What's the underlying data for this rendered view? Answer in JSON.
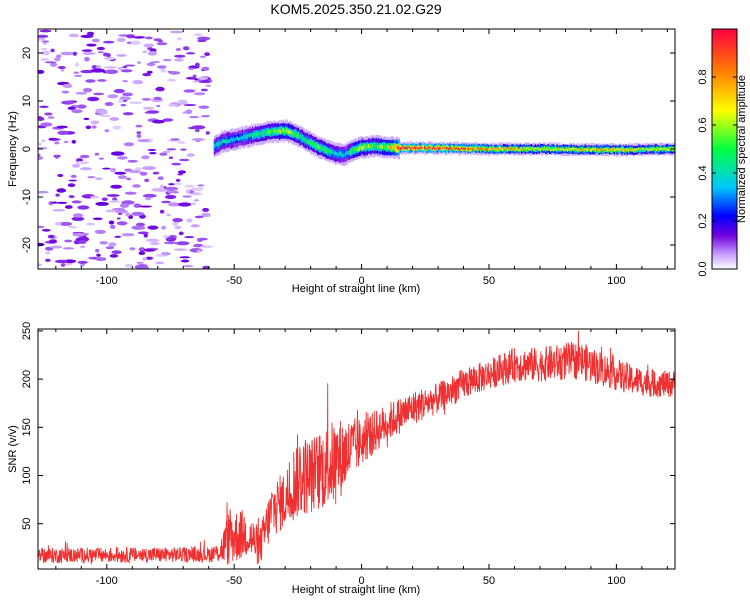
{
  "chart_data": [
    {
      "type": "heatmap",
      "title": "KOM5.2025.350.21.02.G29",
      "xlabel": "Height of straight line (km)",
      "ylabel": "Frequency (Hz)",
      "xlim": [
        -127,
        123
      ],
      "ylim": [
        -25,
        25
      ],
      "xticks": [
        -100,
        -50,
        0,
        50,
        100
      ],
      "yticks": [
        -20,
        -10,
        0,
        10,
        20
      ],
      "colorbar": {
        "label": "Normalized spectral amplitude",
        "range": [
          0,
          1
        ],
        "ticks": [
          0.0,
          0.2,
          0.4,
          0.6,
          0.8
        ],
        "colors": [
          "#ffffff",
          "#c8a0ff",
          "#6000e0",
          "#0000ff",
          "#00c8ff",
          "#00ff40",
          "#ffff00",
          "#ff8000",
          "#ff0040"
        ]
      },
      "ridge": [
        {
          "x": -58,
          "f": 0.5,
          "a": 0.35
        },
        {
          "x": -55,
          "f": 1.5,
          "a": 0.4
        },
        {
          "x": -50,
          "f": 2.0,
          "a": 0.35
        },
        {
          "x": -45,
          "f": 2.6,
          "a": 0.4
        },
        {
          "x": -40,
          "f": 3.2,
          "a": 0.45
        },
        {
          "x": -35,
          "f": 3.6,
          "a": 0.55
        },
        {
          "x": -30,
          "f": 3.8,
          "a": 0.6
        },
        {
          "x": -26,
          "f": 3.0,
          "a": 0.5
        },
        {
          "x": -22,
          "f": 1.8,
          "a": 0.45
        },
        {
          "x": -18,
          "f": 0.6,
          "a": 0.5
        },
        {
          "x": -14,
          "f": -0.3,
          "a": 0.5
        },
        {
          "x": -10,
          "f": -1.0,
          "a": 0.4
        },
        {
          "x": -7,
          "f": -1.2,
          "a": 0.35
        },
        {
          "x": -4,
          "f": -0.4,
          "a": 0.5
        },
        {
          "x": 0,
          "f": 0.4,
          "a": 0.6
        },
        {
          "x": 5,
          "f": 0.6,
          "a": 0.5
        },
        {
          "x": 10,
          "f": 0.4,
          "a": 0.6
        },
        {
          "x": 15,
          "f": 0.2,
          "a": 0.95
        },
        {
          "x": 25,
          "f": 0.2,
          "a": 0.9
        },
        {
          "x": 40,
          "f": 0.1,
          "a": 0.85
        },
        {
          "x": 55,
          "f": 0.0,
          "a": 0.75
        },
        {
          "x": 70,
          "f": 0.0,
          "a": 0.65
        },
        {
          "x": 85,
          "f": -0.1,
          "a": 0.7
        },
        {
          "x": 100,
          "f": -0.2,
          "a": 0.75
        },
        {
          "x": 110,
          "f": -0.1,
          "a": 0.6
        },
        {
          "x": 123,
          "f": 0.0,
          "a": 0.7
        }
      ]
    },
    {
      "type": "line",
      "xlabel": "Height of straight line (km)",
      "ylabel": "SNR (v/v)",
      "xlim": [
        -127,
        123
      ],
      "ylim": [
        3,
        252
      ],
      "xticks": [
        -100,
        -50,
        0,
        50,
        100
      ],
      "yticks": [
        50,
        100,
        150,
        200,
        250
      ],
      "color": "#f03030",
      "envelope": [
        {
          "x": -127,
          "mean": 17,
          "spread": 8
        },
        {
          "x": -60,
          "mean": 18,
          "spread": 8
        },
        {
          "x": -56,
          "mean": 20,
          "spread": 10
        },
        {
          "x": -52,
          "mean": 35,
          "spread": 30
        },
        {
          "x": -45,
          "mean": 40,
          "spread": 25
        },
        {
          "x": -40,
          "mean": 25,
          "spread": 20
        },
        {
          "x": -35,
          "mean": 65,
          "spread": 30
        },
        {
          "x": -30,
          "mean": 75,
          "spread": 30
        },
        {
          "x": -25,
          "mean": 100,
          "spread": 45
        },
        {
          "x": -20,
          "mean": 100,
          "spread": 40
        },
        {
          "x": -10,
          "mean": 115,
          "spread": 45
        },
        {
          "x": 0,
          "mean": 135,
          "spread": 25
        },
        {
          "x": 10,
          "mean": 155,
          "spread": 20
        },
        {
          "x": 20,
          "mean": 170,
          "spread": 18
        },
        {
          "x": 30,
          "mean": 180,
          "spread": 16
        },
        {
          "x": 40,
          "mean": 195,
          "spread": 16
        },
        {
          "x": 50,
          "mean": 205,
          "spread": 16
        },
        {
          "x": 60,
          "mean": 215,
          "spread": 18
        },
        {
          "x": 70,
          "mean": 215,
          "spread": 18
        },
        {
          "x": 85,
          "mean": 220,
          "spread": 20
        },
        {
          "x": 95,
          "mean": 210,
          "spread": 18
        },
        {
          "x": 105,
          "mean": 200,
          "spread": 16
        },
        {
          "x": 115,
          "mean": 195,
          "spread": 14
        },
        {
          "x": 123,
          "mean": 195,
          "spread": 14
        }
      ]
    }
  ]
}
